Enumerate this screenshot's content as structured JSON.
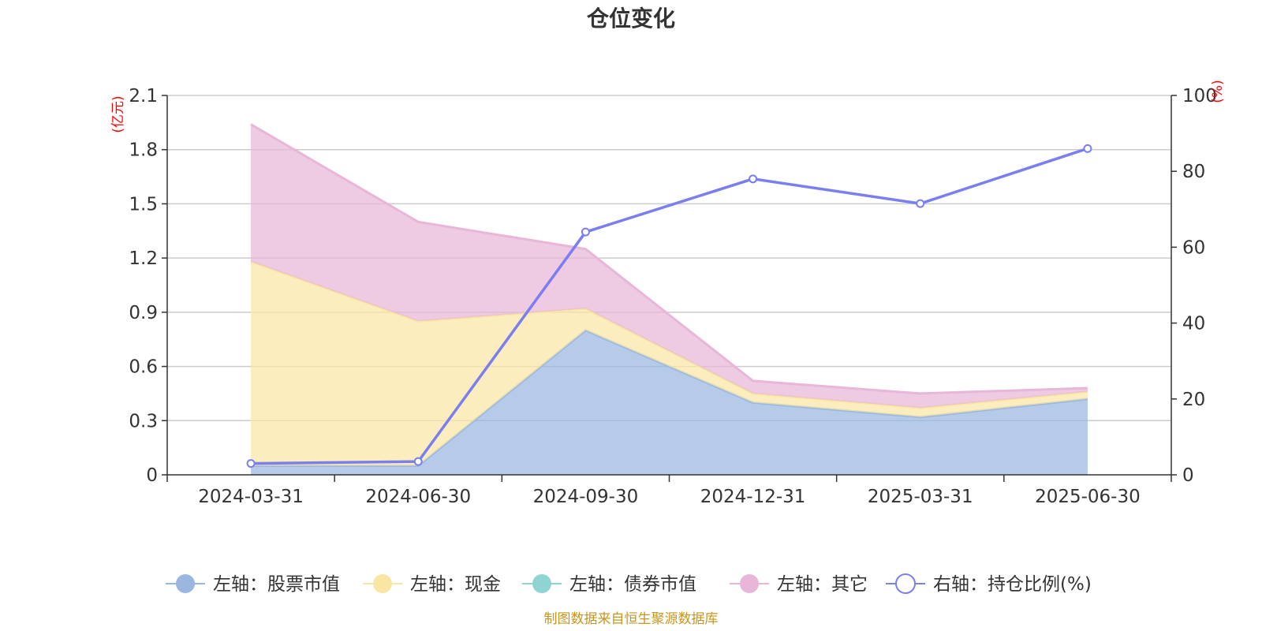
{
  "chart_data": {
    "type": "area",
    "title": "仓位变化",
    "categories": [
      "2024-03-31",
      "2024-06-30",
      "2024-09-30",
      "2024-12-31",
      "2025-03-31",
      "2025-06-30"
    ],
    "left_axis": {
      "unit": "(亿元)",
      "range": [
        0,
        2.1
      ],
      "ticks": [
        "0",
        "0.3",
        "0.6",
        "0.9",
        "1.2",
        "1.5",
        "1.8",
        "2.1"
      ]
    },
    "right_axis": {
      "unit": "(%)",
      "range": [
        0,
        100
      ],
      "ticks": [
        "0",
        "20",
        "40",
        "60",
        "80",
        "100"
      ]
    },
    "stacked": true,
    "series": [
      {
        "name": "股票市值",
        "axis": "left",
        "type": "area",
        "color": "#9ab7e0",
        "values": [
          0.05,
          0.05,
          0.8,
          0.4,
          0.32,
          0.42
        ]
      },
      {
        "name": "现金",
        "axis": "left",
        "type": "area",
        "color": "#f9e6a5",
        "values": [
          1.13,
          0.8,
          0.12,
          0.05,
          0.05,
          0.04
        ]
      },
      {
        "name": "债券市值",
        "axis": "left",
        "type": "area",
        "color": "#8fd3d3",
        "values": [
          0,
          0,
          0,
          0,
          0,
          0
        ]
      },
      {
        "name": "其它",
        "axis": "left",
        "type": "area",
        "color": "#e8b6d8",
        "values": [
          0.76,
          0.55,
          0.33,
          0.07,
          0.08,
          0.02
        ]
      },
      {
        "name": "持仓比例(%)",
        "axis": "right",
        "type": "line",
        "color": "#7b7ef0",
        "values": [
          3.0,
          3.5,
          64.0,
          78.0,
          71.5,
          86.0
        ]
      }
    ],
    "legend_labels": [
      "左轴：股票市值",
      "左轴：现金",
      "左轴：债券市值",
      "左轴：其它",
      "右轴：持仓比例(%)"
    ],
    "legend_position": "bottom",
    "grid": true
  },
  "footer": {
    "source": "制图数据来自恒生聚源数据库"
  }
}
